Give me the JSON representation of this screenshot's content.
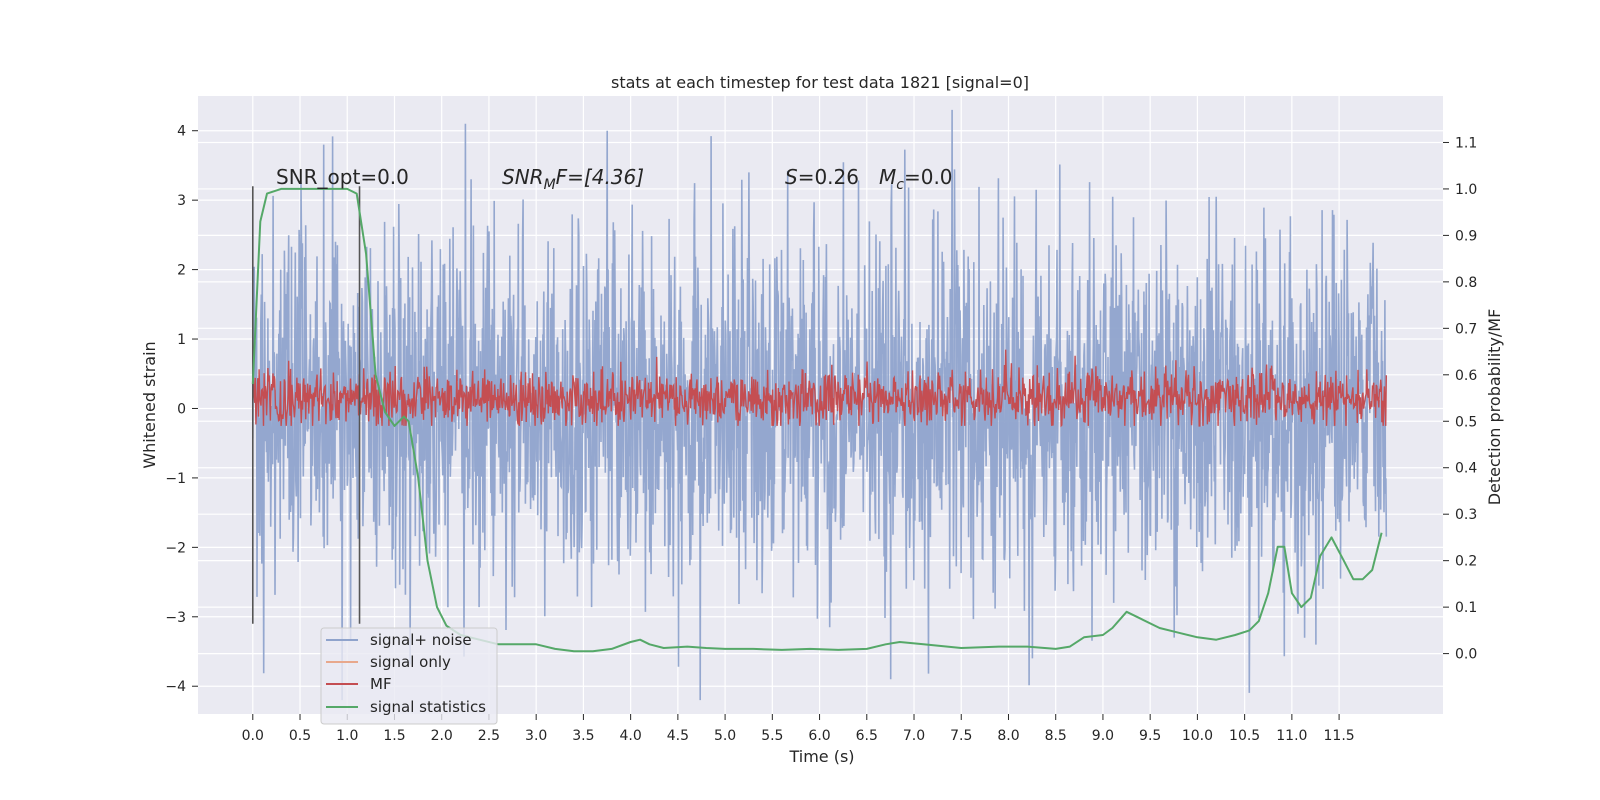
{
  "chart_data": {
    "type": "line",
    "title": "stats at each timestep for test data 1821 [signal=0]",
    "xlabel": "Time (s)",
    "ylabel": "Whitened strain",
    "y2label": "Detection probability/MF",
    "xlim": [
      -0.58,
      12.6
    ],
    "ylim": [
      -4.4,
      4.5
    ],
    "y2lim": [
      -0.13,
      1.2
    ],
    "x_ticks": [
      "0.0",
      "0.5",
      "1.0",
      "1.5",
      "2.0",
      "2.5",
      "3.0",
      "3.5",
      "4.0",
      "4.5",
      "5.0",
      "5.5",
      "6.0",
      "6.5",
      "7.0",
      "7.5",
      "8.0",
      "8.5",
      "9.0",
      "9.5",
      "10.0",
      "10.5",
      "11.0",
      "11.5"
    ],
    "y_ticks": [
      "4",
      "3",
      "2",
      "1",
      "0",
      "−1",
      "−2",
      "−3",
      "−4"
    ],
    "y2_ticks": [
      "1.1",
      "1.0",
      "0.9",
      "0.8",
      "0.7",
      "0.6",
      "0.5",
      "0.4",
      "0.3",
      "0.2",
      "0.1",
      "0.0"
    ],
    "annotations": {
      "snr_opt": "SNR_opt=0.0",
      "snr_mf_base": "SNR",
      "snr_mf_sub": "M",
      "snr_mf_rest": "F=[4.36]",
      "s_label": "S",
      "s_value": "=0.26",
      "mc_base": "M",
      "mc_sub": "c",
      "mc_value": "=0.0"
    },
    "vertical_lines_x": [
      0.0,
      1.13
    ],
    "series": [
      {
        "name": "signal+ noise",
        "color": "#8fa3cc",
        "x_range": [
          0.0,
          12.0
        ],
        "typical_range": [
          -1.3,
          1.3
        ],
        "peak_values": [
          3.8,
          4.1,
          4.0,
          3.4,
          -3.9,
          -3.6,
          -3.3,
          -3.4
        ]
      },
      {
        "name": "signal only",
        "color": "#e8a88c",
        "values": [
          0,
          0
        ]
      },
      {
        "name": "MF",
        "color": "#c44e52",
        "axis": "y2",
        "x_range": [
          0.0,
          12.0
        ],
        "typical_range": [
          0.5,
          0.6
        ],
        "full_range": [
          0.49,
          0.66
        ]
      },
      {
        "name": "signal statistics",
        "color": "#55a868",
        "axis": "y2",
        "x": [
          0.0,
          0.08,
          0.15,
          0.3,
          0.5,
          0.8,
          1.0,
          1.1,
          1.2,
          1.3,
          1.4,
          1.5,
          1.6,
          1.65,
          1.75,
          1.85,
          1.95,
          2.05,
          2.2,
          2.4,
          2.6,
          2.8,
          3.0,
          3.2,
          3.4,
          3.6,
          3.8,
          4.0,
          4.1,
          4.2,
          4.35,
          4.6,
          4.8,
          5.0,
          5.3,
          5.6,
          5.9,
          6.2,
          6.5,
          6.7,
          6.85,
          7.1,
          7.5,
          7.9,
          8.2,
          8.5,
          8.65,
          8.8,
          9.0,
          9.1,
          9.25,
          9.4,
          9.6,
          9.8,
          10.0,
          10.2,
          10.4,
          10.55,
          10.65,
          10.75,
          10.85,
          10.92,
          11.0,
          11.1,
          11.2,
          11.3,
          11.42,
          11.55,
          11.65,
          11.75,
          11.85,
          11.95
        ],
        "values": [
          0.58,
          0.93,
          0.99,
          1.0,
          1.0,
          1.0,
          1.0,
          0.99,
          0.86,
          0.6,
          0.52,
          0.49,
          0.51,
          0.5,
          0.38,
          0.2,
          0.1,
          0.06,
          0.04,
          0.03,
          0.02,
          0.02,
          0.02,
          0.01,
          0.005,
          0.005,
          0.01,
          0.025,
          0.03,
          0.02,
          0.012,
          0.015,
          0.012,
          0.01,
          0.01,
          0.008,
          0.01,
          0.008,
          0.01,
          0.02,
          0.025,
          0.02,
          0.012,
          0.015,
          0.015,
          0.01,
          0.015,
          0.035,
          0.04,
          0.055,
          0.09,
          0.075,
          0.055,
          0.045,
          0.035,
          0.03,
          0.04,
          0.05,
          0.07,
          0.13,
          0.23,
          0.23,
          0.13,
          0.1,
          0.12,
          0.21,
          0.25,
          0.2,
          0.16,
          0.16,
          0.18,
          0.26
        ]
      }
    ],
    "legend": "lower-left",
    "grid": true
  }
}
